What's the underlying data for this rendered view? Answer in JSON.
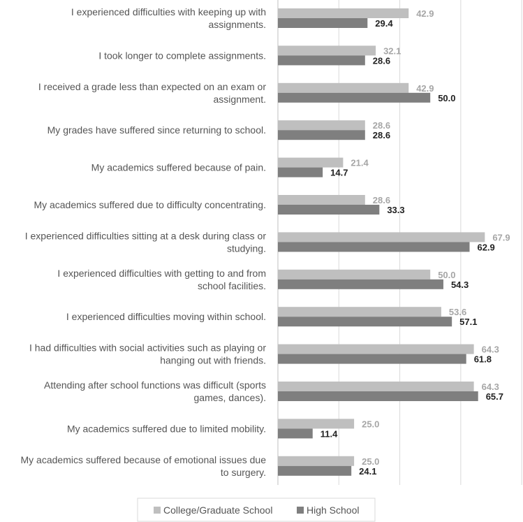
{
  "chart_data": {
    "type": "bar",
    "orientation": "horizontal",
    "title": "",
    "xlabel": "",
    "ylabel": "",
    "xlim": [
      0,
      80
    ],
    "grid": true,
    "legend_position": "bottom",
    "categories": [
      [
        "I experienced difficulties with keeping up with",
        "assignments."
      ],
      [
        "I took longer to complete assignments."
      ],
      [
        "I received a grade less than expected on an exam or",
        "assignment."
      ],
      [
        "My grades have suffered since returning to school."
      ],
      [
        "My academics suffered because of pain."
      ],
      [
        "My academics suffered due to difficulty concentrating."
      ],
      [
        "I experienced difficulties sitting at a desk during class or",
        "studying."
      ],
      [
        "I experienced difficulties with getting to and from",
        "school facilities."
      ],
      [
        "I experienced difficulties moving within school."
      ],
      [
        "I had difficulties with social activities such as playing or",
        "hanging out with friends."
      ],
      [
        "Attending after school functions was difficult (sports",
        "games, dances)."
      ],
      [
        "My academics suffered due to limited mobility."
      ],
      [
        "My academics suffered because of emotional issues due",
        "to surgery."
      ]
    ],
    "series": [
      {
        "name": "College/Graduate School",
        "color": "#bfbfbf",
        "label_color": "#a6a6a6",
        "values": [
          42.9,
          32.1,
          42.9,
          28.6,
          21.4,
          28.6,
          67.9,
          50.0,
          53.6,
          64.3,
          64.3,
          25.0,
          25.0
        ],
        "labels": [
          "42.9",
          "32.1",
          "42.9",
          "28.6",
          "21.4",
          "28.6",
          "67.9",
          "50.0",
          "53.6",
          "64.3",
          "64.3",
          "25.0",
          "25.0"
        ]
      },
      {
        "name": "High School",
        "color": "#7f7f7f",
        "label_color": "#222222",
        "values": [
          29.4,
          28.6,
          50.0,
          28.6,
          14.7,
          33.3,
          62.9,
          54.3,
          57.1,
          61.8,
          65.7,
          11.4,
          24.1
        ],
        "labels": [
          "29.4",
          "28.6",
          "50.0",
          "28.6",
          "14.7",
          "33.3",
          "62.9",
          "54.3",
          "57.1",
          "61.8",
          "65.7",
          "11.4",
          "24.1"
        ]
      }
    ]
  }
}
